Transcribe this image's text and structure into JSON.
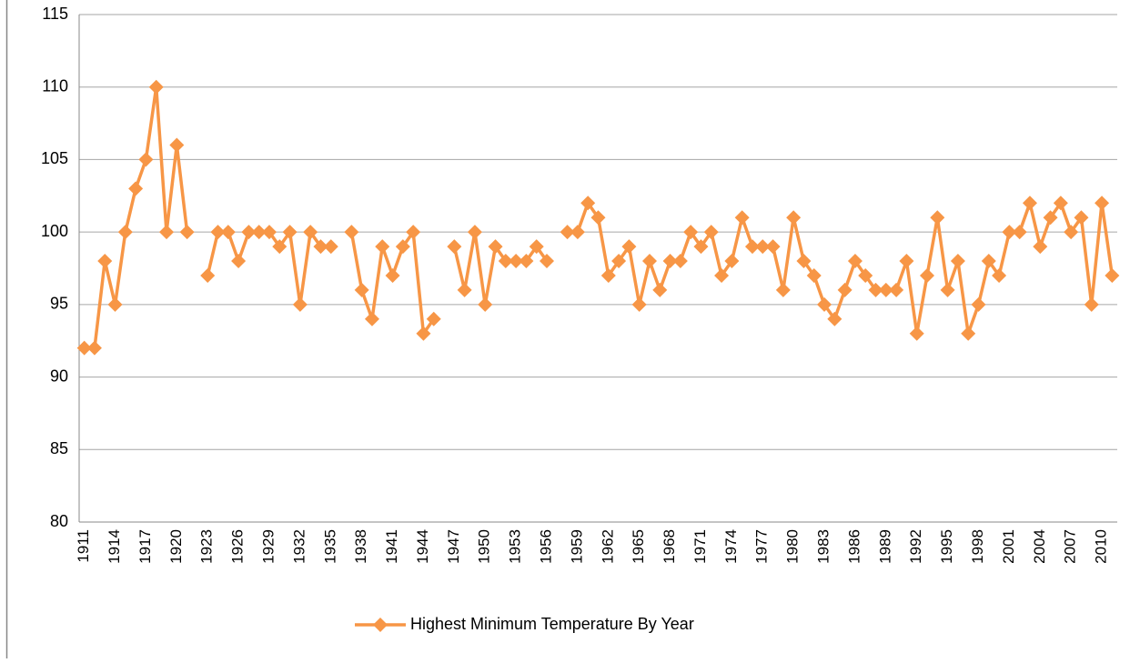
{
  "chart_data": {
    "type": "line",
    "categories": [
      "1911",
      null,
      null,
      "1914",
      null,
      null,
      "1917",
      null,
      null,
      "1920",
      null,
      null,
      "1923",
      null,
      null,
      "1926",
      null,
      null,
      "1929",
      null,
      null,
      "1932",
      null,
      null,
      "1935",
      null,
      null,
      "1938",
      null,
      null,
      "1941",
      null,
      null,
      "1944",
      null,
      null,
      "1947",
      null,
      null,
      "1950",
      null,
      null,
      "1953",
      null,
      null,
      "1956",
      null,
      null,
      "1959",
      null,
      null,
      "1962",
      null,
      null,
      "1965",
      null,
      null,
      "1968",
      null,
      null,
      "1971",
      null,
      null,
      "1974",
      null,
      null,
      "1977",
      null,
      null,
      "1980",
      null,
      null,
      "1983",
      null,
      null,
      "1986",
      null,
      null,
      "1989",
      null,
      null,
      "1992",
      null,
      null,
      "1995",
      null,
      null,
      "1998",
      null,
      null,
      "2001",
      null,
      null,
      "2004",
      null,
      null,
      "2007",
      null,
      null,
      "2010",
      null
    ],
    "series": [
      {
        "name": "Highest Minimum Temperature By Year",
        "color": "#f79646",
        "values": [
          92,
          92,
          98,
          95,
          100,
          103,
          105,
          110,
          100,
          106,
          100,
          null,
          97,
          100,
          100,
          98,
          100,
          100,
          100,
          99,
          100,
          95,
          100,
          99,
          99,
          null,
          100,
          96,
          94,
          99,
          97,
          99,
          100,
          93,
          94,
          null,
          99,
          96,
          100,
          95,
          99,
          98,
          98,
          98,
          99,
          98,
          null,
          100,
          100,
          102,
          101,
          97,
          98,
          99,
          95,
          98,
          96,
          98,
          98,
          100,
          99,
          100,
          97,
          98,
          101,
          99,
          99,
          99,
          96,
          101,
          98,
          97,
          95,
          94,
          96,
          98,
          97,
          96,
          96,
          96,
          98,
          93,
          97,
          101,
          96,
          98,
          93,
          95,
          98,
          97,
          100,
          100,
          102,
          99,
          101,
          102,
          100,
          101,
          95,
          102,
          97
        ]
      }
    ],
    "ylim": [
      80,
      115
    ],
    "yticks": [
      80,
      85,
      90,
      95,
      100,
      105,
      110,
      115
    ],
    "grid": true,
    "legend": "bottom"
  }
}
